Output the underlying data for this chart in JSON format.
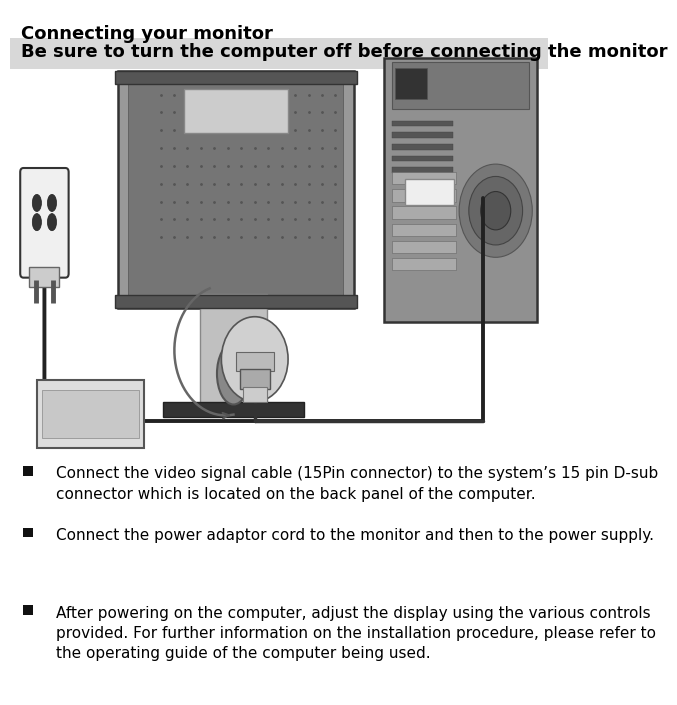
{
  "title": "Connecting your monitor",
  "subtitle": "Be sure to turn the computer off before connecting the monitor",
  "subtitle_bg": "#d8d8d8",
  "bg_color": "#ffffff",
  "bullet_items": [
    "Connect the video signal cable (15Pin connector) to the system’s 15 pin D-sub\nconnector which is located on the back panel of the computer.",
    "Connect the power adaptor cord to the monitor and then to the power supply.",
    "After powering on the computer, adjust the display using the various controls\nprovided. For further information on the installation procedure, please refer to\nthe operating guide of the computer being used."
  ],
  "title_fontsize": 13,
  "subtitle_fontsize": 13,
  "body_fontsize": 11,
  "fig_width": 6.94,
  "fig_height": 8.9
}
